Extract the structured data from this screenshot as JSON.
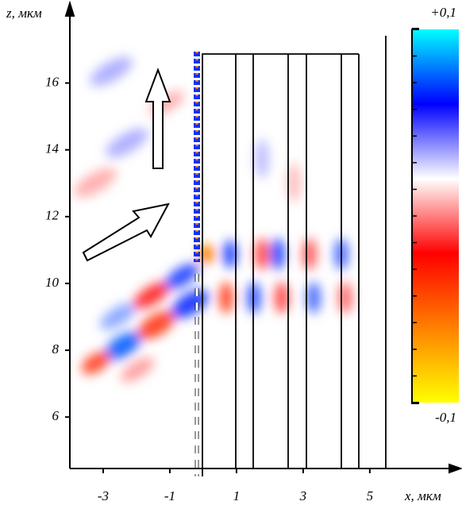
{
  "chart_data": {
    "type": "field",
    "xlabel": "x, мкм",
    "ylabel": "z, мкм",
    "xlim": [
      -4,
      7.6
    ],
    "xticks": [
      -3,
      -1,
      1,
      3,
      5
    ],
    "ylim": [
      4.46,
      18.2
    ],
    "yticks": [
      6,
      8,
      10,
      12,
      14,
      16
    ],
    "clim": [
      -0.1,
      0.1
    ],
    "cticks": [
      {
        "value": 0.1,
        "label": "+0,1"
      },
      {
        "value": -0.1,
        "label": "-0,1"
      }
    ],
    "colormap": [
      "#ffff00",
      "#ff8000",
      "#ff0000",
      "#ffffff",
      "#0000ff",
      "#00ffff"
    ]
  }
}
